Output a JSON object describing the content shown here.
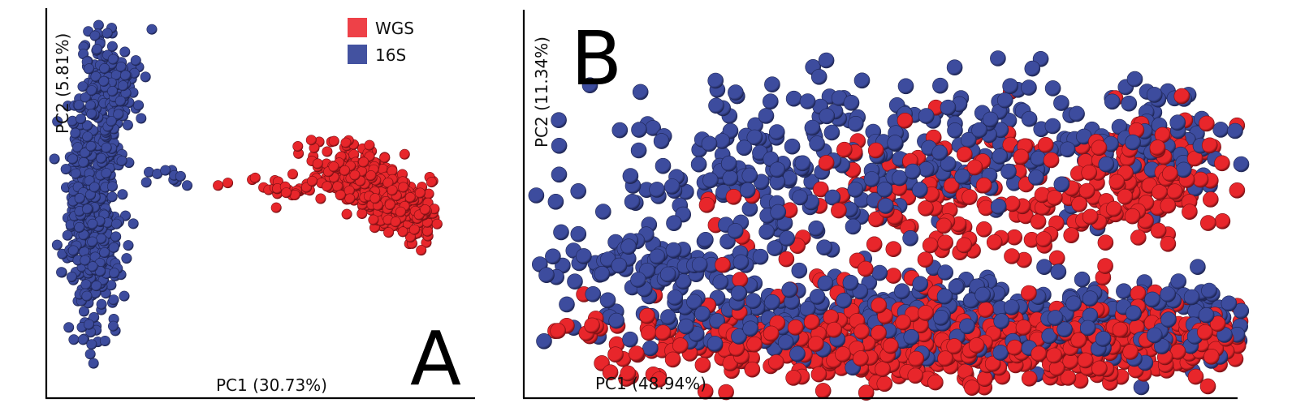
{
  "colors": {
    "WGS": "#e8262b",
    "16S": "#3d4c9e",
    "WGS_legend": "#ee4148",
    "16S_legend": "#4352a0",
    "outline_wgs": "#7a1014",
    "outline_16s": "#1e2553"
  },
  "chart_data": [
    {
      "type": "scatter",
      "panel": "A",
      "xlabel": "PC1 (30.73%)",
      "ylabel": "PC2 (5.81%)",
      "legend": {
        "placement": "top-right",
        "entries": [
          "WGS",
          "16S"
        ]
      },
      "xlim": [
        0,
        100
      ],
      "ylim": [
        0,
        100
      ],
      "grid": false,
      "series": [
        {
          "name": "16S",
          "clusters": [
            {
              "cx": 11,
              "cy": 50,
              "sx": 3.2,
              "sy": 16,
              "n": 520,
              "tilt": 0.05
            },
            {
              "cx": 15,
              "cy": 82,
              "sx": 3.5,
              "sy": 8,
              "n": 170,
              "tilt": 0.35
            },
            {
              "cx": 31,
              "cy": 56,
              "sx": 3.5,
              "sy": 2.2,
              "n": 10,
              "tilt": 0
            }
          ]
        },
        {
          "name": "WGS",
          "clusters": [
            {
              "cx": 84,
              "cy": 54,
              "sx": 7.5,
              "sy": 4.2,
              "n": 520,
              "tilt": -0.55
            },
            {
              "cx": 62,
              "cy": 54,
              "sx": 5,
              "sy": 1.8,
              "n": 30,
              "tilt": -0.15
            },
            {
              "cx": 44,
              "cy": 56,
              "sx": 0.8,
              "sy": 0.6,
              "n": 2,
              "tilt": 0
            }
          ]
        }
      ]
    },
    {
      "type": "scatter",
      "panel": "B",
      "xlabel": "PC1 (48.94%)",
      "ylabel": "PC2 (11.34%)",
      "xlim": [
        0,
        100
      ],
      "ylim": [
        0,
        100
      ],
      "grid": false,
      "series": [
        {
          "name": "16S",
          "clusters": [
            {
              "cx": 36,
              "cy": 64,
              "sx": 16,
              "sy": 14,
              "n": 230,
              "tilt": 0.0
            },
            {
              "cx": 64,
              "cy": 74,
              "sx": 14,
              "sy": 9,
              "n": 120,
              "tilt": 0.1
            },
            {
              "cx": 88,
              "cy": 74,
              "sx": 6,
              "sy": 8,
              "n": 60,
              "tilt": 0.3
            },
            {
              "cx": 17,
              "cy": 38,
              "sx": 7,
              "sy": 4,
              "n": 90,
              "tilt": 0
            },
            {
              "cx": 60,
              "cy": 22,
              "sx": 26,
              "sy": 6,
              "n": 520,
              "tilt": 0
            }
          ]
        },
        {
          "name": "WGS",
          "clusters": [
            {
              "cx": 62,
              "cy": 56,
              "sx": 17,
              "sy": 12,
              "n": 200,
              "tilt": 0.15
            },
            {
              "cx": 86,
              "cy": 62,
              "sx": 6,
              "sy": 9,
              "n": 110,
              "tilt": 0.3
            },
            {
              "cx": 62,
              "cy": 16,
              "sx": 25,
              "sy": 5.5,
              "n": 780,
              "tilt": 0
            }
          ]
        }
      ]
    }
  ],
  "panels": {
    "A": "A",
    "B": "B"
  }
}
